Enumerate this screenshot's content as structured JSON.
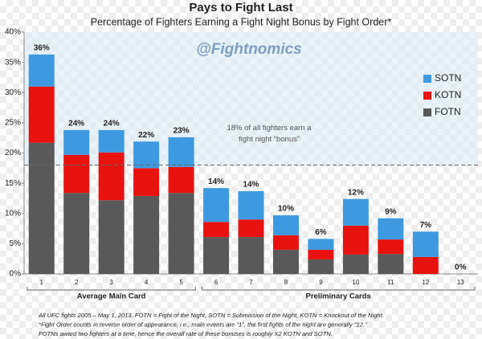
{
  "chart_data": {
    "type": "stacked_bar",
    "title": "Pays to Fight Last",
    "subtitle": "Percentage of Fighters Earning a Fight Night Bonus by Fight Order*",
    "annotation": "@Fightnomics",
    "categories": [
      "1",
      "2",
      "3",
      "4",
      "5",
      "6",
      "7",
      "8",
      "9",
      "10",
      "11",
      "12",
      "13"
    ],
    "series": [
      {
        "name": "FOTN",
        "color": "#595959",
        "values": [
          21.7,
          13.4,
          12.2,
          12.9,
          13.4,
          6.1,
          6.1,
          4.0,
          2.4,
          3.2,
          3.3,
          0,
          0
        ]
      },
      {
        "name": "KOTN",
        "color": "#e8120f",
        "values": [
          9.3,
          6.3,
          7.9,
          4.6,
          4.3,
          2.5,
          2.9,
          2.4,
          1.6,
          4.8,
          2.4,
          2.8,
          0
        ]
      },
      {
        "name": "SOTN",
        "color": "#3d9ae0",
        "values": [
          5.3,
          4.1,
          3.7,
          4.4,
          4.9,
          5.6,
          4.7,
          3.3,
          1.8,
          4.4,
          3.5,
          4.2,
          0
        ]
      }
    ],
    "total_labels": [
      "36%",
      "24%",
      "24%",
      "22%",
      "23%",
      "14%",
      "14%",
      "10%",
      "6%",
      "12%",
      "9%",
      "7%",
      "0%"
    ],
    "reference_line": {
      "value": 18,
      "label": [
        "18% of all fighters earn a",
        "fight night “bonus”"
      ]
    },
    "groups": [
      "Average Main Card",
      "Preliminary Cards"
    ],
    "ylim": [
      0,
      40
    ],
    "yticks": [
      {
        "value": 0,
        "label": "0%"
      },
      {
        "value": 5,
        "label": "5%"
      },
      {
        "value": 10,
        "label": "10%"
      },
      {
        "value": 15,
        "label": "15%"
      },
      {
        "value": 20,
        "label": "20%"
      },
      {
        "value": 25,
        "label": "25%"
      },
      {
        "value": 30,
        "label": "30%"
      },
      {
        "value": 35,
        "label": "35%"
      },
      {
        "value": 40,
        "label": "40%"
      }
    ],
    "grid": false,
    "legend": "right",
    "footnotes": [
      "All UFC fights 2005 – May 1, 2013. FOTN = Fight of the Night, SOTN = Submission of the Night, KOTN = Knockout of the Night.",
      "*Fight Order counts in reverse order of appearance, i.e., main events are “1”, the first fights of the night are generally “12.”",
      "FOTNs award two fighters at a time, hence the overall rate of these bonuses is roughly X2 KOTN and SOTN."
    ]
  }
}
